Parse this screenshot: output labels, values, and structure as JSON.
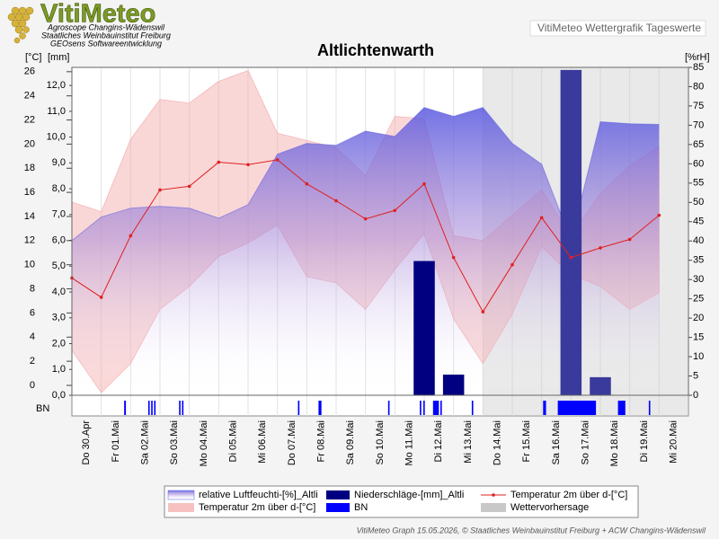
{
  "header": {
    "logo": "VitiMeteo",
    "lines": [
      "Agroscope Changins-Wädenswil",
      "Staatliches Weinbauinstitut Freiburg",
      "GEOsens Softwareentwicklung"
    ],
    "subtitle": "VitiMeteo Wettergrafik Tageswerte"
  },
  "footer": "VitiMeteo Graph 15.05.2026, © Staatliches Weinbauinstitut Freiburg + ACW Changins-Wädenswil",
  "chart_data": {
    "type": "weather",
    "title": "Altlichtenwarth",
    "y_label": "[°C]",
    "y3_label": "[mm]",
    "y2_label": "[%rH]",
    "categories": [
      "Do 30.Apr",
      "Fr 01.Mai",
      "Sa 02.Mai",
      "So 03.Mai",
      "Mo 04.Mai",
      "Di 05.Mai",
      "Mi 06.Mai",
      "Do 07.Mai",
      "Fr 08.Mai",
      "Sa 09.Mai",
      "So 10.Mai",
      "Mo 11.Mai",
      "Di 12.Mai",
      "Mi 13.Mai",
      "Do 14.Mai",
      "Fr 15.Mai",
      "Sa 16.Mai",
      "So 17.Mai",
      "Mo 18.Mai",
      "Di 19.Mai",
      "Mi 20.Mai"
    ],
    "ylim": [
      -0.82,
      26.36
    ],
    "yticks": [
      0,
      2,
      4,
      6,
      8,
      10,
      12,
      14,
      16,
      18,
      20,
      22,
      24,
      26
    ],
    "y3lim": [
      0,
      12.7
    ],
    "y3ticks": [
      {
        "value": 0,
        "label": "0,0"
      },
      {
        "value": 1,
        "label": "1,0"
      },
      {
        "value": 2,
        "label": "2,0"
      },
      {
        "value": 3,
        "label": "3,0"
      },
      {
        "value": 4,
        "label": "4,0"
      },
      {
        "value": 5,
        "label": "5,0"
      },
      {
        "value": 6,
        "label": "6,0"
      },
      {
        "value": 7,
        "label": "7,0"
      },
      {
        "value": 8,
        "label": "8,0"
      },
      {
        "value": 9,
        "label": "9,0"
      },
      {
        "value": 10,
        "label": "10,0"
      },
      {
        "value": 11,
        "label": "11,0"
      },
      {
        "value": 12,
        "label": "12,0"
      }
    ],
    "y2lim": [
      0,
      85
    ],
    "y2ticks": [
      0,
      5,
      10,
      15,
      20,
      25,
      30,
      35,
      40,
      45,
      50,
      55,
      60,
      65,
      70,
      75,
      80,
      85
    ],
    "series": [
      {
        "name": "relative Luftfeuchti-[%]_Altli",
        "type": "area",
        "axis": "y2",
        "color": "#5a5ae0",
        "values": [
          40.1,
          46.2,
          48.5,
          49.0,
          48.5,
          45.9,
          49.4,
          62.5,
          65.3,
          64.8,
          68.5,
          67.1,
          74.6,
          72.3,
          74.6,
          65.3,
          59.9,
          40.1,
          70.9,
          70.4,
          70.2
        ]
      },
      {
        "name": "Niederschläge-[mm]_Altli",
        "type": "bar",
        "axis": "y3",
        "color": "#000080",
        "forecast_color": "#3a3a9c",
        "values": [
          0,
          0,
          0,
          0,
          0,
          0,
          0,
          0,
          0,
          0,
          0,
          0,
          5.2,
          0.8,
          0,
          0,
          0,
          12.6,
          0.7,
          0,
          0
        ]
      },
      {
        "name": "Temperatur 2m über d-[°C]",
        "type": "line",
        "color": "#e02020",
        "values": [
          8.9,
          7.3,
          12.4,
          16.2,
          16.5,
          18.5,
          18.3,
          18.7,
          16.7,
          15.3,
          13.8,
          14.5,
          16.7,
          10.6,
          6.1,
          10.0,
          13.9,
          10.6,
          11.4,
          12.1,
          14.1
        ]
      },
      {
        "name": "Temperatur 2m über d-[°C]",
        "type": "band",
        "color": "#f4a6a6",
        "high": [
          15.2,
          14.4,
          20.4,
          23.7,
          23.4,
          25.2,
          26.1,
          20.9,
          20.3,
          19.7,
          17.4,
          22.3,
          22.1,
          12.4,
          12.0,
          14.1,
          16.2,
          12.4,
          15.9,
          18.2,
          19.8
        ],
        "low": [
          2.9,
          -0.6,
          1.8,
          6.3,
          8.2,
          10.7,
          11.8,
          13.3,
          9.0,
          8.5,
          6.3,
          9.6,
          12.6,
          5.5,
          1.8,
          5.9,
          11.5,
          9.2,
          8.2,
          6.3,
          7.7
        ]
      },
      {
        "name": "BN",
        "type": "strip",
        "color": "#0000ff",
        "x_ranges": [
          [
            1.78,
            1.84
          ],
          [
            2.6,
            2.65
          ],
          [
            2.7,
            2.75
          ],
          [
            2.8,
            2.85
          ],
          [
            3.65,
            3.7
          ],
          [
            3.75,
            3.8
          ],
          [
            7.7,
            7.75
          ],
          [
            8.4,
            8.5
          ],
          [
            10.77,
            10.82
          ],
          [
            11.85,
            11.9
          ],
          [
            11.97,
            12.02
          ],
          [
            12.3,
            12.5
          ],
          [
            12.55,
            12.6
          ],
          [
            13.62,
            13.67
          ],
          [
            16.05,
            16.15
          ],
          [
            16.55,
            17.85
          ],
          [
            18.6,
            18.85
          ],
          [
            19.65,
            19.7
          ]
        ]
      },
      {
        "name": "Wettervorhersage",
        "type": "shade",
        "color": "#c8c8c8",
        "from": 14
      }
    ]
  }
}
